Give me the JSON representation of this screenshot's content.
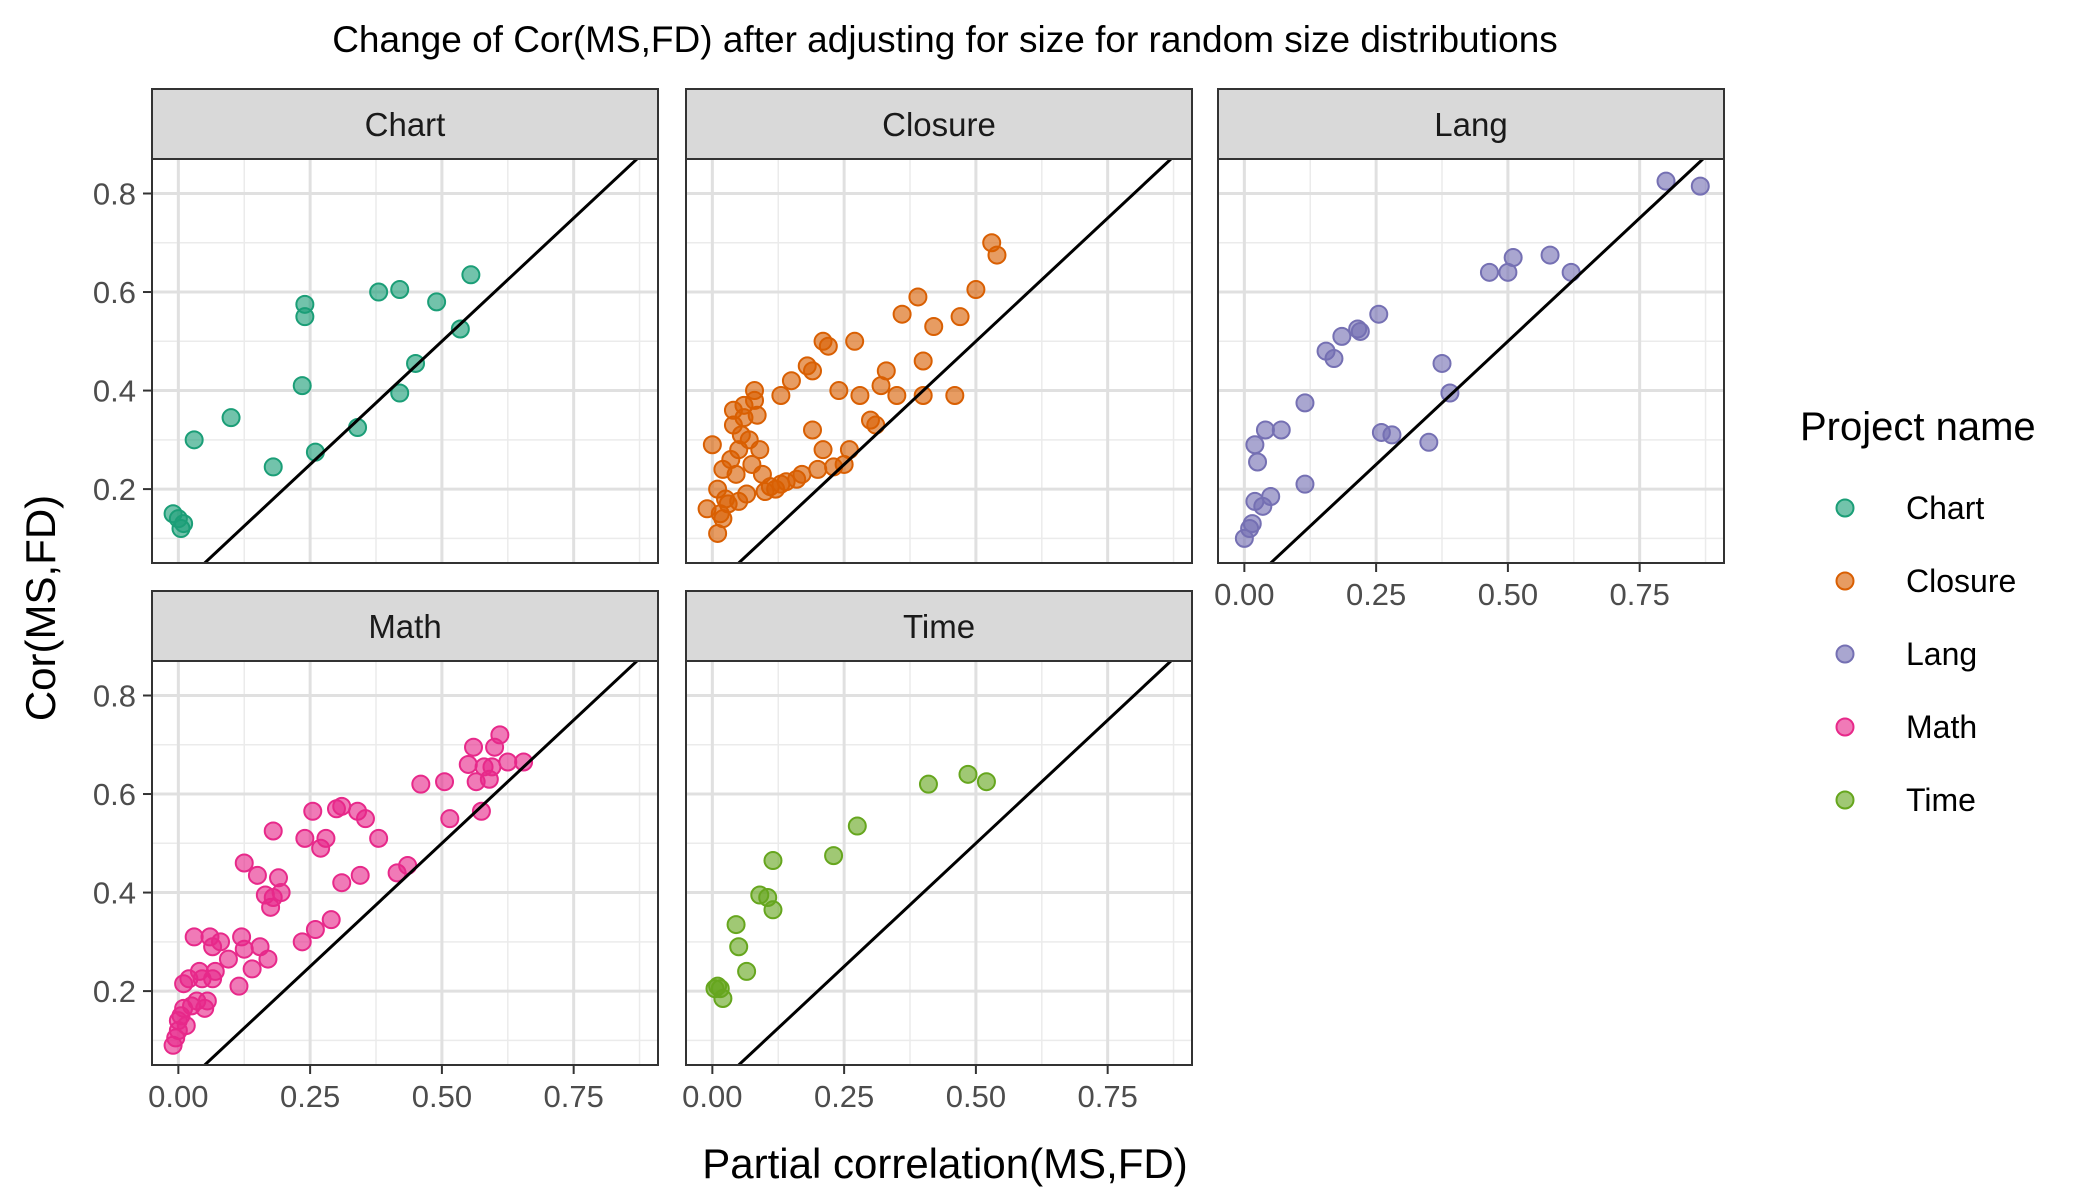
{
  "chart_data": {
    "type": "scatter",
    "title": "Change of Cor(MS,FD) after adjusting for size for random size distributions",
    "xlabel": "Partial correlation(MS,FD)",
    "ylabel": "Cor(MS,FD)",
    "xlim": [
      -0.05,
      0.91
    ],
    "ylim": [
      0.05,
      0.87
    ],
    "x_ticks": [
      0.0,
      0.25,
      0.5,
      0.75
    ],
    "x_tick_labels": [
      "0.00",
      "0.25",
      "0.50",
      "0.75"
    ],
    "y_ticks": [
      0.2,
      0.4,
      0.6,
      0.8
    ],
    "y_tick_labels": [
      "0.2",
      "0.4",
      "0.6",
      "0.8"
    ],
    "reference_line": "y = x",
    "grid": true,
    "legend": {
      "title": "Project name",
      "position": "right",
      "entries": [
        "Chart",
        "Closure",
        "Lang",
        "Math",
        "Time"
      ]
    },
    "colors": {
      "Chart": "#1b9e77",
      "Closure": "#d95f02",
      "Lang": "#7570b3",
      "Math": "#e7298a",
      "Time": "#66a61e"
    },
    "panels": [
      {
        "name": "Chart",
        "points": [
          [
            -0.01,
            0.15
          ],
          [
            0.0,
            0.14
          ],
          [
            0.005,
            0.12
          ],
          [
            0.01,
            0.13
          ],
          [
            0.03,
            0.3
          ],
          [
            0.1,
            0.345
          ],
          [
            0.18,
            0.245
          ],
          [
            0.235,
            0.41
          ],
          [
            0.24,
            0.575
          ],
          [
            0.24,
            0.55
          ],
          [
            0.26,
            0.275
          ],
          [
            0.34,
            0.325
          ],
          [
            0.38,
            0.6
          ],
          [
            0.42,
            0.605
          ],
          [
            0.42,
            0.395
          ],
          [
            0.45,
            0.455
          ],
          [
            0.49,
            0.58
          ],
          [
            0.535,
            0.525
          ],
          [
            0.555,
            0.635
          ]
        ]
      },
      {
        "name": "Closure",
        "points": [
          [
            -0.01,
            0.16
          ],
          [
            0.0,
            0.29
          ],
          [
            0.01,
            0.11
          ],
          [
            0.01,
            0.2
          ],
          [
            0.015,
            0.15
          ],
          [
            0.02,
            0.14
          ],
          [
            0.02,
            0.24
          ],
          [
            0.025,
            0.18
          ],
          [
            0.03,
            0.17
          ],
          [
            0.035,
            0.26
          ],
          [
            0.04,
            0.33
          ],
          [
            0.04,
            0.36
          ],
          [
            0.045,
            0.23
          ],
          [
            0.05,
            0.175
          ],
          [
            0.05,
            0.28
          ],
          [
            0.055,
            0.31
          ],
          [
            0.06,
            0.345
          ],
          [
            0.06,
            0.37
          ],
          [
            0.065,
            0.19
          ],
          [
            0.07,
            0.3
          ],
          [
            0.075,
            0.25
          ],
          [
            0.08,
            0.4
          ],
          [
            0.08,
            0.38
          ],
          [
            0.085,
            0.35
          ],
          [
            0.09,
            0.28
          ],
          [
            0.095,
            0.23
          ],
          [
            0.1,
            0.195
          ],
          [
            0.11,
            0.205
          ],
          [
            0.12,
            0.2
          ],
          [
            0.13,
            0.21
          ],
          [
            0.13,
            0.39
          ],
          [
            0.14,
            0.215
          ],
          [
            0.15,
            0.42
          ],
          [
            0.16,
            0.22
          ],
          [
            0.17,
            0.23
          ],
          [
            0.18,
            0.45
          ],
          [
            0.19,
            0.32
          ],
          [
            0.19,
            0.44
          ],
          [
            0.2,
            0.24
          ],
          [
            0.21,
            0.28
          ],
          [
            0.21,
            0.5
          ],
          [
            0.22,
            0.49
          ],
          [
            0.23,
            0.245
          ],
          [
            0.24,
            0.4
          ],
          [
            0.25,
            0.25
          ],
          [
            0.26,
            0.28
          ],
          [
            0.27,
            0.5
          ],
          [
            0.28,
            0.39
          ],
          [
            0.3,
            0.34
          ],
          [
            0.31,
            0.33
          ],
          [
            0.32,
            0.41
          ],
          [
            0.33,
            0.44
          ],
          [
            0.35,
            0.39
          ],
          [
            0.36,
            0.555
          ],
          [
            0.39,
            0.59
          ],
          [
            0.4,
            0.39
          ],
          [
            0.4,
            0.46
          ],
          [
            0.42,
            0.53
          ],
          [
            0.46,
            0.39
          ],
          [
            0.47,
            0.55
          ],
          [
            0.5,
            0.605
          ],
          [
            0.53,
            0.7
          ],
          [
            0.54,
            0.675
          ]
        ]
      },
      {
        "name": "Lang",
        "points": [
          [
            0.0,
            0.1
          ],
          [
            0.01,
            0.12
          ],
          [
            0.015,
            0.13
          ],
          [
            0.02,
            0.29
          ],
          [
            0.02,
            0.175
          ],
          [
            0.025,
            0.255
          ],
          [
            0.035,
            0.165
          ],
          [
            0.04,
            0.32
          ],
          [
            0.05,
            0.185
          ],
          [
            0.07,
            0.32
          ],
          [
            0.115,
            0.21
          ],
          [
            0.115,
            0.375
          ],
          [
            0.155,
            0.48
          ],
          [
            0.17,
            0.465
          ],
          [
            0.185,
            0.51
          ],
          [
            0.215,
            0.525
          ],
          [
            0.22,
            0.52
          ],
          [
            0.255,
            0.555
          ],
          [
            0.26,
            0.315
          ],
          [
            0.28,
            0.31
          ],
          [
            0.35,
            0.295
          ],
          [
            0.375,
            0.455
          ],
          [
            0.39,
            0.395
          ],
          [
            0.465,
            0.64
          ],
          [
            0.5,
            0.64
          ],
          [
            0.51,
            0.67
          ],
          [
            0.58,
            0.675
          ],
          [
            0.62,
            0.64
          ],
          [
            0.8,
            0.825
          ],
          [
            0.865,
            0.815
          ]
        ]
      },
      {
        "name": "Math",
        "points": [
          [
            -0.01,
            0.09
          ],
          [
            -0.005,
            0.105
          ],
          [
            0.0,
            0.12
          ],
          [
            0.0,
            0.14
          ],
          [
            0.005,
            0.15
          ],
          [
            0.01,
            0.165
          ],
          [
            0.01,
            0.215
          ],
          [
            0.015,
            0.13
          ],
          [
            0.02,
            0.225
          ],
          [
            0.025,
            0.17
          ],
          [
            0.03,
            0.31
          ],
          [
            0.035,
            0.18
          ],
          [
            0.04,
            0.24
          ],
          [
            0.045,
            0.225
          ],
          [
            0.05,
            0.165
          ],
          [
            0.055,
            0.18
          ],
          [
            0.06,
            0.31
          ],
          [
            0.065,
            0.225
          ],
          [
            0.065,
            0.29
          ],
          [
            0.07,
            0.24
          ],
          [
            0.08,
            0.3
          ],
          [
            0.095,
            0.265
          ],
          [
            0.115,
            0.21
          ],
          [
            0.12,
            0.31
          ],
          [
            0.125,
            0.285
          ],
          [
            0.125,
            0.46
          ],
          [
            0.14,
            0.245
          ],
          [
            0.15,
            0.435
          ],
          [
            0.155,
            0.29
          ],
          [
            0.165,
            0.395
          ],
          [
            0.17,
            0.265
          ],
          [
            0.175,
            0.37
          ],
          [
            0.18,
            0.525
          ],
          [
            0.18,
            0.39
          ],
          [
            0.19,
            0.43
          ],
          [
            0.195,
            0.4
          ],
          [
            0.235,
            0.3
          ],
          [
            0.24,
            0.51
          ],
          [
            0.255,
            0.565
          ],
          [
            0.26,
            0.325
          ],
          [
            0.27,
            0.49
          ],
          [
            0.28,
            0.51
          ],
          [
            0.29,
            0.345
          ],
          [
            0.3,
            0.57
          ],
          [
            0.31,
            0.575
          ],
          [
            0.31,
            0.42
          ],
          [
            0.34,
            0.565
          ],
          [
            0.345,
            0.435
          ],
          [
            0.355,
            0.55
          ],
          [
            0.38,
            0.51
          ],
          [
            0.415,
            0.44
          ],
          [
            0.435,
            0.455
          ],
          [
            0.46,
            0.62
          ],
          [
            0.505,
            0.625
          ],
          [
            0.515,
            0.55
          ],
          [
            0.55,
            0.66
          ],
          [
            0.56,
            0.695
          ],
          [
            0.565,
            0.625
          ],
          [
            0.575,
            0.565
          ],
          [
            0.58,
            0.655
          ],
          [
            0.59,
            0.63
          ],
          [
            0.595,
            0.655
          ],
          [
            0.6,
            0.695
          ],
          [
            0.61,
            0.72
          ],
          [
            0.625,
            0.665
          ],
          [
            0.655,
            0.665
          ]
        ]
      },
      {
        "name": "Time",
        "points": [
          [
            0.005,
            0.205
          ],
          [
            0.01,
            0.21
          ],
          [
            0.015,
            0.205
          ],
          [
            0.02,
            0.185
          ],
          [
            0.045,
            0.335
          ],
          [
            0.05,
            0.29
          ],
          [
            0.065,
            0.24
          ],
          [
            0.09,
            0.395
          ],
          [
            0.105,
            0.39
          ],
          [
            0.115,
            0.365
          ],
          [
            0.115,
            0.465
          ],
          [
            0.23,
            0.475
          ],
          [
            0.275,
            0.535
          ],
          [
            0.41,
            0.62
          ],
          [
            0.485,
            0.64
          ],
          [
            0.52,
            0.625
          ]
        ]
      }
    ]
  }
}
